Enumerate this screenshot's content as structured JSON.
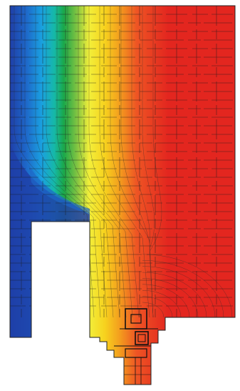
{
  "figure": {
    "kind": "thermal-simulation-isotherm-plot",
    "background": "#ffffff",
    "colormap": [
      {
        "stop": 0.0,
        "color": "#1f3fa8"
      },
      {
        "stop": 0.1,
        "color": "#1e66c8"
      },
      {
        "stop": 0.2,
        "color": "#1aa0e0"
      },
      {
        "stop": 0.28,
        "color": "#16b8a8"
      },
      {
        "stop": 0.34,
        "color": "#1aa84a"
      },
      {
        "stop": 0.42,
        "color": "#7cc242"
      },
      {
        "stop": 0.5,
        "color": "#f2ef3a"
      },
      {
        "stop": 0.6,
        "color": "#f7d21e"
      },
      {
        "stop": 0.7,
        "color": "#f39a1e"
      },
      {
        "stop": 0.8,
        "color": "#ee5524"
      },
      {
        "stop": 1.0,
        "color": "#e3261f"
      }
    ],
    "cold_side_color": "#1f3fa8",
    "warm_side_color": "#e3261f",
    "mesh_line_color": "#1b1b1b",
    "cavity_color": "#ffffff"
  }
}
